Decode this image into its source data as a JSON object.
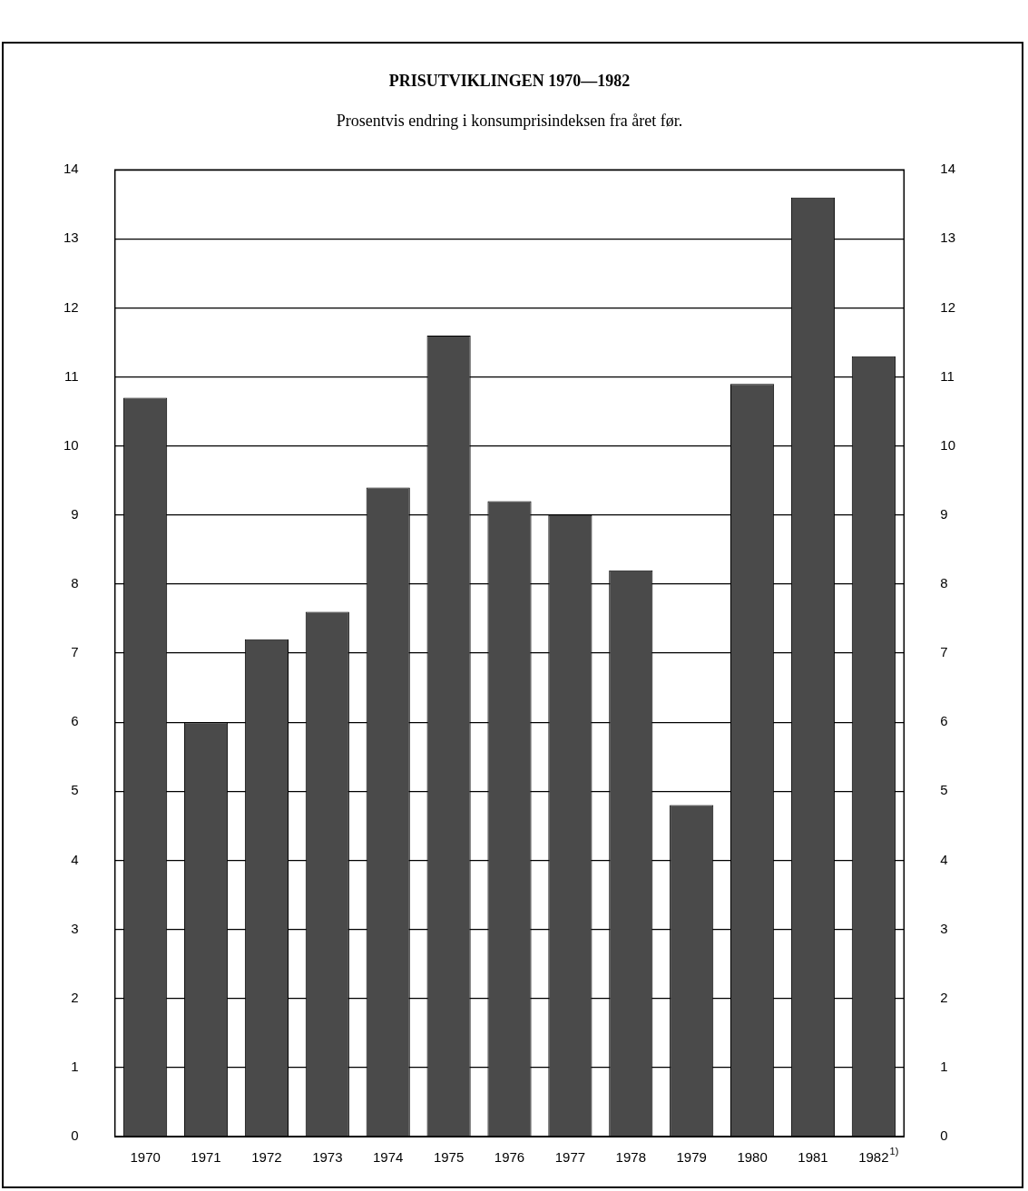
{
  "chart_data": {
    "type": "bar",
    "title": "PRISUTVIKLINGEN 1970—1982",
    "subtitle": "Prosentvis endring i konsumprisindeksen fra året før.",
    "categories": [
      "1970",
      "1971",
      "1972",
      "1973",
      "1974",
      "1975",
      "1976",
      "1977",
      "1978",
      "1979",
      "1980",
      "1981",
      "1982$^{1)}$"
    ],
    "values": [
      10.7,
      6.0,
      7.2,
      7.6,
      9.4,
      11.6,
      9.2,
      9.0,
      8.2,
      4.8,
      10.9,
      13.6,
      11.3
    ],
    "color": "#4a4a4a",
    "ylim": [
      0,
      14
    ],
    "yticks": [
      0,
      1,
      2,
      3,
      4,
      5,
      6,
      7,
      8,
      9,
      10,
      11,
      12,
      13,
      14
    ],
    "y2lim": [
      0,
      14
    ],
    "y2ticks": [
      0,
      1,
      2,
      3,
      4,
      5,
      6,
      7,
      8,
      9,
      10,
      11,
      12,
      13,
      14
    ],
    "grid": "y",
    "legend": false
  }
}
